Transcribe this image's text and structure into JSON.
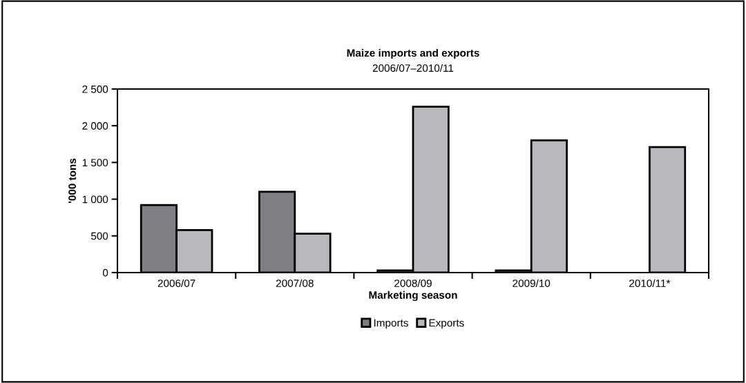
{
  "chart_data": {
    "type": "bar",
    "title": "Maize imports and exports",
    "subtitle": "2006/07–2010/11",
    "xlabel": "Marketing season",
    "ylabel": "'000 tons",
    "categories": [
      "2006/07",
      "2007/08",
      "2008/09",
      "2009/10",
      "2010/11*"
    ],
    "series": [
      {
        "name": "Imports",
        "color": "#7f8085",
        "values": [
          920,
          1100,
          30,
          30,
          null
        ]
      },
      {
        "name": "Exports",
        "color": "#b8b9bd",
        "values": [
          580,
          530,
          2260,
          1800,
          1710
        ]
      }
    ],
    "ylim": [
      0,
      2500
    ],
    "yticks": [
      0,
      {
        "value": 500,
        "label": "500"
      },
      {
        "value": 1000,
        "label": "1 000"
      },
      {
        "value": 1500,
        "label": "1 500"
      },
      {
        "value": 2000,
        "label": "2 000"
      },
      {
        "value": 2500,
        "label": "2 500"
      }
    ],
    "grid": false,
    "legend": "bottom"
  }
}
